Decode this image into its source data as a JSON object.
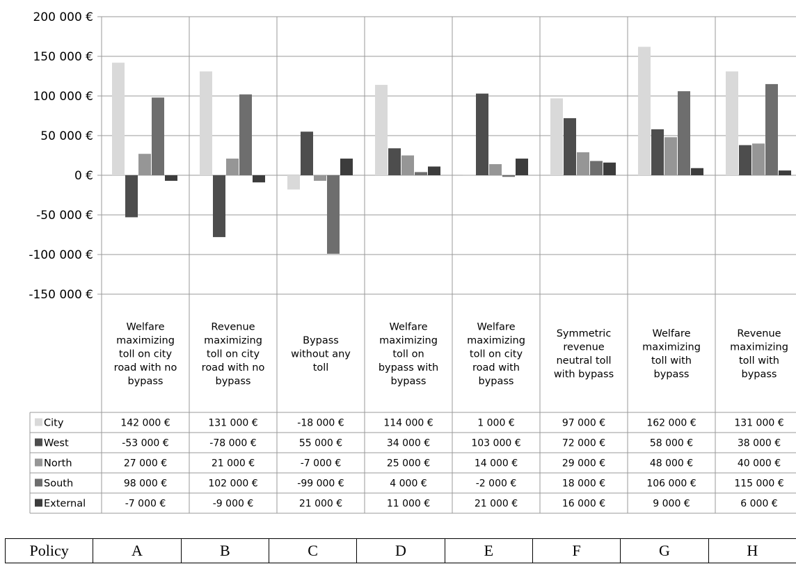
{
  "chart_data": {
    "type": "bar",
    "y_tick_labels": [
      "200 000 €",
      "150 000 €",
      "100 000 €",
      "50 000 €",
      "0 €",
      "-50 000 €",
      "-100 000 €",
      "-150 000 €"
    ],
    "ylim": [
      -150000,
      200000
    ],
    "categories": [
      [
        "Welfare",
        "maximizing",
        "toll on city",
        "road with no",
        "bypass"
      ],
      [
        "Revenue",
        "maximizing",
        "toll on city",
        "road with no",
        "bypass"
      ],
      [
        "Bypass",
        "without any",
        "toll"
      ],
      [
        "Welfare",
        "maximizing",
        "toll on",
        "bypass with",
        "bypass"
      ],
      [
        "Welfare",
        "maximizing",
        "toll on city",
        "road with",
        "bypass"
      ],
      [
        "Symmetric",
        "revenue",
        "neutral toll",
        "with bypass"
      ],
      [
        "Welfare",
        "maximizing",
        "toll with",
        "bypass"
      ],
      [
        "Revenue",
        "maximizing",
        "toll with",
        "bypass"
      ]
    ],
    "series": [
      {
        "name": "City",
        "color": "#d9d9d9",
        "values": [
          142000,
          131000,
          -18000,
          114000,
          1000,
          97000,
          162000,
          131000
        ],
        "labels": [
          "142 000 €",
          "131 000 €",
          "-18 000 €",
          "114 000 €",
          "1 000 €",
          "97 000 €",
          "162 000 €",
          "131 000 €"
        ]
      },
      {
        "name": "West",
        "color": "#4d4d4d",
        "values": [
          -53000,
          -78000,
          55000,
          34000,
          103000,
          72000,
          58000,
          38000
        ],
        "labels": [
          "-53 000 €",
          "-78 000 €",
          "55 000 €",
          "34 000 €",
          "103 000 €",
          "72 000 €",
          "58 000 €",
          "38 000 €"
        ]
      },
      {
        "name": "North",
        "color": "#969696",
        "values": [
          27000,
          21000,
          -7000,
          25000,
          14000,
          29000,
          48000,
          40000
        ],
        "labels": [
          "27 000 €",
          "21 000 €",
          "-7 000 €",
          "25 000 €",
          "14 000 €",
          "29 000 €",
          "48 000 €",
          "40 000 €"
        ]
      },
      {
        "name": "South",
        "color": "#6e6e6e",
        "values": [
          98000,
          102000,
          -99000,
          4000,
          -2000,
          18000,
          106000,
          115000
        ],
        "labels": [
          "98 000 €",
          "102 000 €",
          "-99 000 €",
          "4 000 €",
          "-2 000 €",
          "18 000 €",
          "106 000 €",
          "115 000 €"
        ]
      },
      {
        "name": "External",
        "color": "#3c3c3c",
        "values": [
          -7000,
          -9000,
          21000,
          11000,
          21000,
          16000,
          9000,
          6000
        ],
        "labels": [
          "-7 000 €",
          "-9 000 €",
          "21 000 €",
          "11 000 €",
          "21 000 €",
          "16 000 €",
          "9 000 €",
          "6 000 €"
        ]
      }
    ],
    "grid": true,
    "legend": "data-table-left"
  },
  "policy_table": {
    "header": "Policy",
    "codes": [
      "A",
      "B",
      "C",
      "D",
      "E",
      "F",
      "G",
      "H"
    ]
  }
}
